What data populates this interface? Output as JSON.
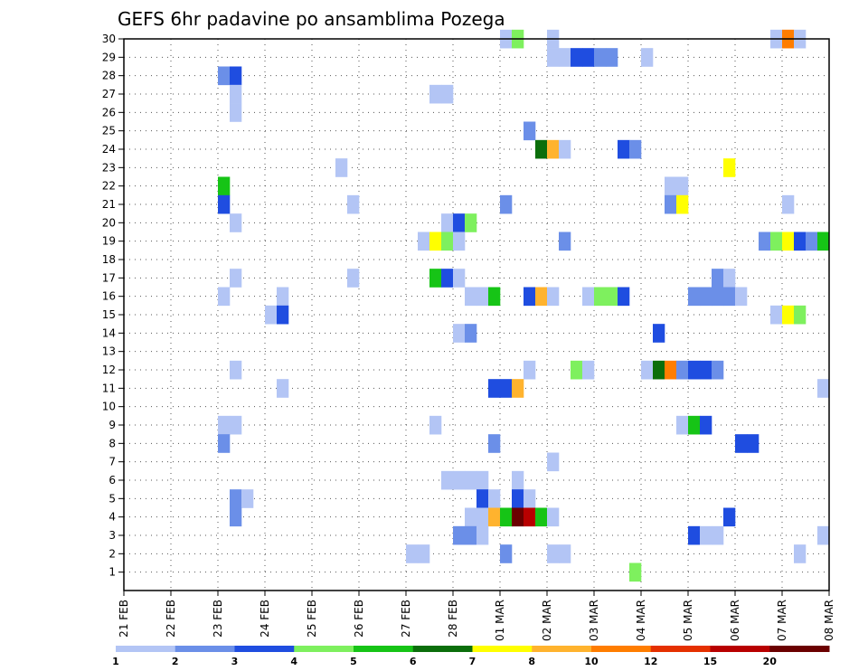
{
  "chart_data": {
    "type": "heatmap",
    "title": "GEFS 6hr padavine po ansamblima Pozega",
    "xlabel": "",
    "ylabel": "",
    "x_range": [
      0,
      60
    ],
    "y_range": [
      0,
      30
    ],
    "x_ticks": [
      {
        "x": 0,
        "label": "21 FEB"
      },
      {
        "x": 4,
        "label": "22 FEB"
      },
      {
        "x": 8,
        "label": "23 FEB"
      },
      {
        "x": 12,
        "label": "24 FEB"
      },
      {
        "x": 16,
        "label": "25 FEB"
      },
      {
        "x": 20,
        "label": "26 FEB"
      },
      {
        "x": 24,
        "label": "27 FEB"
      },
      {
        "x": 28,
        "label": "28 FEB"
      },
      {
        "x": 32,
        "label": "01 MAR"
      },
      {
        "x": 36,
        "label": "02 MAR"
      },
      {
        "x": 40,
        "label": "03 MAR"
      },
      {
        "x": 44,
        "label": "04 MAR"
      },
      {
        "x": 48,
        "label": "05 MAR"
      },
      {
        "x": 52,
        "label": "06 MAR"
      },
      {
        "x": 56,
        "label": "07 MAR"
      },
      {
        "x": 60,
        "label": "08 MAR"
      }
    ],
    "y_ticks": [
      "1",
      "2",
      "3",
      "4",
      "5",
      "6",
      "7",
      "8",
      "9",
      "10",
      "11",
      "12",
      "13",
      "14",
      "15",
      "16",
      "17",
      "18",
      "19",
      "20",
      "21",
      "22",
      "23",
      "24",
      "25",
      "26",
      "27",
      "28",
      "29",
      "30"
    ],
    "grid": true,
    "legend": {
      "placement": "bottom",
      "colors": [
        "#b3c5f5",
        "#6b8fe8",
        "#1f4de0",
        "#7ef05e",
        "#16c416",
        "#0b6e0b",
        "#ffff00",
        "#ffb32e",
        "#ff7d00",
        "#e53000",
        "#b80000",
        "#6b0000"
      ],
      "labels": [
        "1",
        "2",
        "3",
        "4",
        "5",
        "6",
        "7",
        "8",
        "10",
        "12",
        "15",
        "20"
      ]
    },
    "cells": [
      [
        32,
        30,
        1
      ],
      [
        33,
        30,
        4
      ],
      [
        36,
        30,
        1
      ],
      [
        55,
        30,
        1
      ],
      [
        56,
        30,
        9
      ],
      [
        57,
        30,
        1
      ],
      [
        36,
        29,
        1
      ],
      [
        37,
        29,
        1
      ],
      [
        38,
        29,
        3
      ],
      [
        39,
        29,
        3
      ],
      [
        40,
        29,
        2
      ],
      [
        41,
        29,
        2
      ],
      [
        44,
        29,
        1
      ],
      [
        8,
        28,
        2
      ],
      [
        9,
        28,
        3
      ],
      [
        9,
        27,
        1
      ],
      [
        26,
        27,
        1
      ],
      [
        27,
        27,
        1
      ],
      [
        9,
        26,
        1
      ],
      [
        34,
        25,
        2
      ],
      [
        35,
        24,
        6
      ],
      [
        36,
        24,
        8
      ],
      [
        37,
        24,
        1
      ],
      [
        42,
        24,
        3
      ],
      [
        43,
        24,
        2
      ],
      [
        18,
        23,
        1
      ],
      [
        51,
        23,
        7
      ],
      [
        8,
        22,
        5
      ],
      [
        46,
        22,
        1
      ],
      [
        47,
        22,
        1
      ],
      [
        8,
        21,
        3
      ],
      [
        19,
        21,
        1
      ],
      [
        32,
        21,
        2
      ],
      [
        46,
        21,
        2
      ],
      [
        47,
        21,
        7
      ],
      [
        56,
        21,
        1
      ],
      [
        9,
        20,
        1
      ],
      [
        27,
        20,
        1
      ],
      [
        28,
        20,
        3
      ],
      [
        29,
        20,
        4
      ],
      [
        25,
        19,
        1
      ],
      [
        26,
        19,
        7
      ],
      [
        27,
        19,
        4
      ],
      [
        28,
        19,
        1
      ],
      [
        37,
        19,
        2
      ],
      [
        54,
        19,
        2
      ],
      [
        55,
        19,
        4
      ],
      [
        56,
        19,
        7
      ],
      [
        57,
        19,
        3
      ],
      [
        58,
        19,
        2
      ],
      [
        59,
        19,
        5
      ],
      [
        9,
        17,
        1
      ],
      [
        19,
        17,
        1
      ],
      [
        26,
        17,
        5
      ],
      [
        27,
        17,
        3
      ],
      [
        28,
        17,
        1
      ],
      [
        50,
        17,
        2
      ],
      [
        51,
        17,
        1
      ],
      [
        8,
        16,
        1
      ],
      [
        13,
        16,
        1
      ],
      [
        29,
        16,
        1
      ],
      [
        30,
        16,
        1
      ],
      [
        31,
        16,
        5
      ],
      [
        34,
        16,
        3
      ],
      [
        35,
        16,
        8
      ],
      [
        36,
        16,
        1
      ],
      [
        39,
        16,
        1
      ],
      [
        40,
        16,
        4
      ],
      [
        41,
        16,
        4
      ],
      [
        42,
        16,
        3
      ],
      [
        48,
        16,
        2
      ],
      [
        49,
        16,
        2
      ],
      [
        50,
        16,
        2
      ],
      [
        51,
        16,
        2
      ],
      [
        52,
        16,
        1
      ],
      [
        12,
        15,
        1
      ],
      [
        13,
        15,
        3
      ],
      [
        55,
        15,
        1
      ],
      [
        56,
        15,
        7
      ],
      [
        57,
        15,
        4
      ],
      [
        28,
        14,
        1
      ],
      [
        29,
        14,
        2
      ],
      [
        45,
        14,
        3
      ],
      [
        9,
        12,
        1
      ],
      [
        34,
        12,
        1
      ],
      [
        38,
        12,
        4
      ],
      [
        39,
        12,
        1
      ],
      [
        44,
        12,
        1
      ],
      [
        45,
        12,
        6
      ],
      [
        46,
        12,
        9
      ],
      [
        47,
        12,
        2
      ],
      [
        48,
        12,
        3
      ],
      [
        49,
        12,
        3
      ],
      [
        50,
        12,
        2
      ],
      [
        13,
        11,
        1
      ],
      [
        31,
        11,
        3
      ],
      [
        32,
        11,
        3
      ],
      [
        33,
        11,
        8
      ],
      [
        59,
        11,
        1
      ],
      [
        8,
        9,
        1
      ],
      [
        9,
        9,
        1
      ],
      [
        26,
        9,
        1
      ],
      [
        47,
        9,
        1
      ],
      [
        48,
        9,
        5
      ],
      [
        49,
        9,
        3
      ],
      [
        8,
        8,
        2
      ],
      [
        31,
        8,
        2
      ],
      [
        52,
        8,
        3
      ],
      [
        53,
        8,
        3
      ],
      [
        36,
        7,
        1
      ],
      [
        27,
        6,
        1
      ],
      [
        28,
        6,
        1
      ],
      [
        29,
        6,
        1
      ],
      [
        30,
        6,
        1
      ],
      [
        33,
        6,
        1
      ],
      [
        9,
        5,
        2
      ],
      [
        10,
        5,
        1
      ],
      [
        30,
        5,
        3
      ],
      [
        31,
        5,
        1
      ],
      [
        33,
        5,
        3
      ],
      [
        34,
        5,
        1
      ],
      [
        9,
        4,
        2
      ],
      [
        29,
        4,
        1
      ],
      [
        30,
        4,
        1
      ],
      [
        31,
        4,
        8
      ],
      [
        32,
        4,
        5
      ],
      [
        33,
        4,
        12
      ],
      [
        34,
        4,
        11
      ],
      [
        35,
        4,
        5
      ],
      [
        36,
        4,
        1
      ],
      [
        51,
        4,
        3
      ],
      [
        28,
        3,
        2
      ],
      [
        29,
        3,
        2
      ],
      [
        30,
        3,
        1
      ],
      [
        48,
        3,
        3
      ],
      [
        49,
        3,
        1
      ],
      [
        50,
        3,
        1
      ],
      [
        59,
        3,
        1
      ],
      [
        24,
        2,
        1
      ],
      [
        25,
        2,
        1
      ],
      [
        32,
        2,
        2
      ],
      [
        36,
        2,
        1
      ],
      [
        37,
        2,
        1
      ],
      [
        57,
        2,
        1
      ],
      [
        43,
        1,
        4
      ]
    ]
  }
}
